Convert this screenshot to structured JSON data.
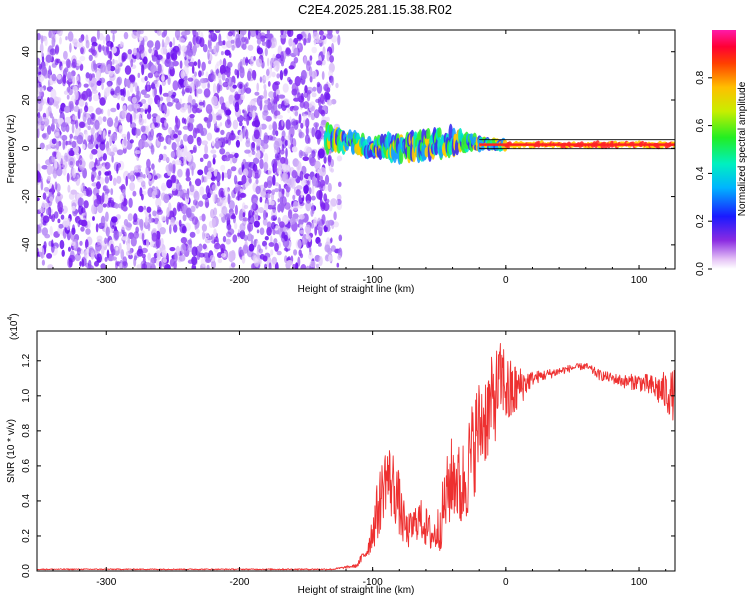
{
  "title": "C2E4.2025.281.15.38.R02",
  "colors": {
    "snr_line": "#ee3030",
    "axis": "#000000",
    "cloud": "#7a1ff0"
  },
  "chart_data": [
    {
      "type": "heatmap",
      "name": "spectrogram",
      "xlabel": "Height of straight line (km)",
      "ylabel": "Frequency (Hz)",
      "xlim": [
        -352,
        127
      ],
      "ylim": [
        -50,
        49
      ],
      "x_ticks": [
        -300,
        -200,
        -100,
        0,
        100
      ],
      "x_tick_labels": [
        "-300",
        "-200",
        "-100",
        "0",
        "100"
      ],
      "y_ticks": [
        -40,
        -20,
        0,
        20,
        40
      ],
      "y_tick_labels": [
        "-40",
        "-20",
        "0",
        "20",
        "40"
      ],
      "noise_region_x": [
        -352,
        -130
      ],
      "signal_center_frequency_hz": 1.5,
      "signal_trace": [
        {
          "x": -135,
          "freq": 5,
          "half_width": 4
        },
        {
          "x": -120,
          "freq": 3,
          "half_width": 3
        },
        {
          "x": -100,
          "freq": 0,
          "half_width": 3
        },
        {
          "x": -80,
          "freq": 0,
          "half_width": 4
        },
        {
          "x": -60,
          "freq": 2,
          "half_width": 4
        },
        {
          "x": -40,
          "freq": 3,
          "half_width": 4
        },
        {
          "x": -20,
          "freq": 2,
          "half_width": 2
        },
        {
          "x": 0,
          "freq": 1.5,
          "half_width": 1.5
        },
        {
          "x": 127,
          "freq": 1.5,
          "half_width": 1.5
        }
      ],
      "colorbar": {
        "label": "Normalized spectral amplitude",
        "range": [
          0,
          1
        ],
        "ticks": [
          0.0,
          0.2,
          0.4,
          0.6,
          0.8
        ],
        "tick_labels": [
          "0.0",
          "0.2",
          "0.4",
          "0.6",
          "0.8"
        ]
      }
    },
    {
      "type": "line",
      "name": "snr",
      "xlabel": "Height of straight line (km)",
      "ylabel": "SNR (10 * v/v)",
      "y_multiplier_label": "(x10",
      "y_multiplier_exponent": "4",
      "xlim": [
        -352,
        127
      ],
      "ylim": [
        0,
        1.37
      ],
      "x_ticks": [
        -300,
        -200,
        -100,
        0,
        100
      ],
      "x_tick_labels": [
        "-300",
        "-200",
        "-100",
        "0",
        "100"
      ],
      "y_ticks": [
        0.0,
        0.2,
        0.4,
        0.6,
        0.8,
        1.0,
        1.2
      ],
      "y_tick_labels": [
        "0.0",
        "0.2",
        "0.4",
        "0.6",
        "0.8",
        "1.0",
        "1.2"
      ],
      "series": [
        {
          "name": "SNR",
          "x": [
            -352,
            -300,
            -200,
            -130,
            -112,
            -104,
            -96,
            -90,
            -86,
            -82,
            -78,
            -74,
            -70,
            -66,
            -62,
            -58,
            -54,
            -50,
            -46,
            -42,
            -38,
            -34,
            -30,
            -26,
            -22,
            -18,
            -14,
            -10,
            -6,
            -2,
            2,
            6,
            10,
            20,
            30,
            40,
            50,
            60,
            70,
            80,
            90,
            100,
            110,
            120,
            127
          ],
          "y": [
            0.01,
            0.01,
            0.01,
            0.01,
            0.03,
            0.12,
            0.35,
            0.55,
            0.5,
            0.45,
            0.3,
            0.22,
            0.25,
            0.3,
            0.28,
            0.22,
            0.2,
            0.25,
            0.38,
            0.5,
            0.55,
            0.45,
            0.55,
            0.65,
            0.78,
            0.85,
            0.9,
            0.95,
            1.05,
            1.1,
            1.0,
            1.02,
            1.05,
            1.1,
            1.12,
            1.14,
            1.16,
            1.17,
            1.12,
            1.1,
            1.08,
            1.08,
            1.05,
            1.02,
            1.0
          ],
          "jitter": [
            0.003,
            0.003,
            0.003,
            0.004,
            0.01,
            0.05,
            0.18,
            0.2,
            0.22,
            0.2,
            0.15,
            0.1,
            0.1,
            0.12,
            0.12,
            0.12,
            0.1,
            0.15,
            0.2,
            0.25,
            0.25,
            0.25,
            0.28,
            0.3,
            0.3,
            0.28,
            0.28,
            0.28,
            0.25,
            0.22,
            0.22,
            0.18,
            0.12,
            0.04,
            0.03,
            0.025,
            0.02,
            0.02,
            0.03,
            0.03,
            0.04,
            0.05,
            0.07,
            0.12,
            0.15
          ]
        }
      ]
    }
  ]
}
